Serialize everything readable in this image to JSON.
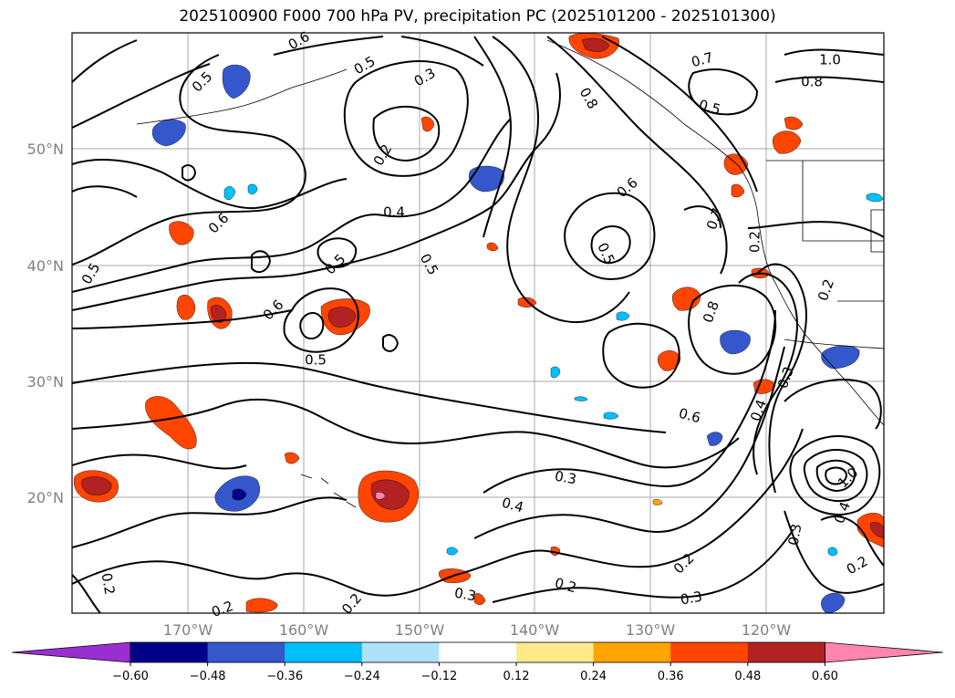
{
  "title": "2025100900 F000 700 hPa PV, precipitation PC (2025101200 - 2025101300)",
  "map": {
    "lat_labels": [
      "50°N",
      "40°N",
      "30°N",
      "20°N"
    ],
    "lon_labels": [
      "170°W",
      "160°W",
      "150°W",
      "140°W",
      "130°W",
      "120°W"
    ],
    "pv_contour_labels": [
      {
        "text": "0.5"
      },
      {
        "text": "0.5"
      },
      {
        "text": "0.6"
      },
      {
        "text": "0.4"
      },
      {
        "text": "0.2"
      },
      {
        "text": "0.3"
      },
      {
        "text": "0.5"
      },
      {
        "text": "0.5"
      },
      {
        "text": "0.6"
      },
      {
        "text": "0.5"
      },
      {
        "text": "0.6"
      },
      {
        "text": "0.5"
      },
      {
        "text": "0.7"
      },
      {
        "text": "0.8"
      },
      {
        "text": "1.0"
      },
      {
        "text": "0.8"
      },
      {
        "text": "0.5"
      },
      {
        "text": "0.7"
      },
      {
        "text": "0.2"
      },
      {
        "text": "0.5"
      },
      {
        "text": "0.2"
      },
      {
        "text": "0.8"
      },
      {
        "text": "0.6"
      },
      {
        "text": "0.6"
      },
      {
        "text": "0.4"
      },
      {
        "text": "0.3"
      },
      {
        "text": "0.3"
      },
      {
        "text": "0.4"
      },
      {
        "text": "1.0"
      },
      {
        "text": "0.4"
      },
      {
        "text": "0.3"
      },
      {
        "text": "0.2"
      },
      {
        "text": "0.2"
      },
      {
        "text": "0.3"
      },
      {
        "text": "0.2"
      },
      {
        "text": "0.2"
      },
      {
        "text": "0.2"
      },
      {
        "text": "0.3"
      },
      {
        "text": "0.2"
      }
    ]
  },
  "colorbar": {
    "colors": [
      "#9a2fd0",
      "#00008b",
      "#3458cc",
      "#00bfff",
      "#aee2fa",
      "#ffffff",
      "#ffe98a",
      "#ffa500",
      "#ff4500",
      "#b22222",
      "#ff85ae"
    ],
    "ticks": [
      "−0.60",
      "−0.48",
      "−0.36",
      "−0.24",
      "−0.12",
      "0.12",
      "0.24",
      "0.36",
      "0.48",
      "0.60"
    ]
  }
}
